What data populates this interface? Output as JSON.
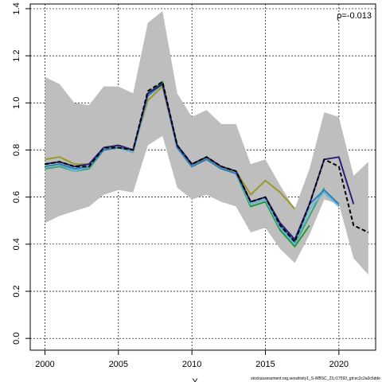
{
  "chart_data": {
    "type": "line",
    "xlim": [
      1999,
      2022.5
    ],
    "ylim": [
      -0.05,
      1.42
    ],
    "x_ticks": [
      2000,
      2005,
      2010,
      2015,
      2020
    ],
    "y_ticks": [
      0.0,
      0.2,
      0.4,
      0.6,
      0.8,
      1.0,
      1.2,
      1.4
    ],
    "x_tick_labels": [
      "2000",
      "2005",
      "2010",
      "2015",
      "2020"
    ],
    "y_tick_labels": [
      "0.0",
      "0.2",
      "0.4",
      "0.6",
      "0.8",
      "1.0",
      "1.2",
      "1.4"
    ],
    "grid": true,
    "annotation": "ρ=-0.013",
    "footer": "stockassessment.org,sensitivity1_S-WBSC_23,r17593_git:ec2c2a0c6dde",
    "xlabel_visible_fragment": "Y",
    "ylabel_visible_fragment": "",
    "band": {
      "x": [
        2000,
        2001,
        2002,
        2003,
        2004,
        2005,
        2006,
        2007,
        2008,
        2009,
        2010,
        2011,
        2012,
        2013,
        2014,
        2015,
        2016,
        2017,
        2018,
        2019,
        2020,
        2021,
        2022
      ],
      "upper": [
        1.11,
        1.08,
        1.0,
        0.99,
        1.07,
        1.07,
        1.04,
        1.34,
        1.39,
        1.04,
        0.94,
        0.97,
        0.91,
        0.91,
        0.74,
        0.76,
        0.65,
        0.55,
        0.72,
        0.96,
        0.94,
        0.69,
        0.75
      ],
      "lower": [
        0.49,
        0.52,
        0.54,
        0.56,
        0.61,
        0.63,
        0.62,
        0.82,
        0.86,
        0.64,
        0.59,
        0.61,
        0.58,
        0.56,
        0.45,
        0.47,
        0.38,
        0.32,
        0.44,
        0.59,
        0.57,
        0.34,
        0.27
      ]
    },
    "series": [
      {
        "style": "dashed",
        "color": "#000000",
        "x": [
          2000,
          2001,
          2002,
          2003,
          2004,
          2005,
          2006,
          2007,
          2008,
          2009,
          2010,
          2011,
          2012,
          2013,
          2014,
          2015,
          2016,
          2017,
          2018,
          2019,
          2020,
          2021,
          2022
        ],
        "y": [
          0.74,
          0.75,
          0.73,
          0.73,
          0.81,
          0.81,
          0.8,
          1.05,
          1.09,
          0.82,
          0.74,
          0.77,
          0.73,
          0.71,
          0.58,
          0.6,
          0.48,
          0.41,
          0.57,
          0.76,
          0.73,
          0.48,
          0.45
        ]
      },
      {
        "style": "solid",
        "color": "#2e1f7a",
        "x": [
          2000,
          2001,
          2002,
          2003,
          2004,
          2005,
          2006,
          2007,
          2008,
          2009,
          2010,
          2011,
          2012,
          2013,
          2014,
          2015,
          2016,
          2017,
          2018,
          2019,
          2020,
          2021
        ],
        "y": [
          0.74,
          0.75,
          0.73,
          0.74,
          0.81,
          0.82,
          0.8,
          1.04,
          1.08,
          0.82,
          0.74,
          0.77,
          0.73,
          0.71,
          0.58,
          0.6,
          0.49,
          0.42,
          0.57,
          0.76,
          0.77,
          0.57
        ]
      },
      {
        "style": "solid",
        "color": "#2f7fbf",
        "x": [
          2000,
          2001,
          2002,
          2003,
          2004,
          2005,
          2006,
          2007,
          2008,
          2009,
          2010,
          2011,
          2012,
          2013,
          2014,
          2015,
          2016,
          2017,
          2018,
          2019,
          2020
        ],
        "y": [
          0.73,
          0.74,
          0.72,
          0.73,
          0.8,
          0.81,
          0.8,
          1.03,
          1.08,
          0.81,
          0.73,
          0.76,
          0.72,
          0.7,
          0.58,
          0.6,
          0.48,
          0.41,
          0.57,
          0.63,
          0.57
        ]
      },
      {
        "style": "solid",
        "color": "#6bb8d8",
        "x": [
          2000,
          2001,
          2002,
          2003,
          2004,
          2005,
          2006,
          2007,
          2008,
          2009,
          2010,
          2011,
          2012,
          2013,
          2014,
          2015,
          2016,
          2017,
          2018,
          2019,
          2020
        ],
        "y": [
          0.73,
          0.74,
          0.71,
          0.73,
          0.8,
          0.81,
          0.79,
          1.03,
          1.08,
          0.81,
          0.73,
          0.76,
          0.72,
          0.7,
          0.57,
          0.59,
          0.47,
          0.4,
          0.55,
          0.62,
          0.56
        ]
      },
      {
        "style": "solid",
        "color": "#35a778",
        "x": [
          2000,
          2001,
          2002,
          2003,
          2004,
          2005,
          2006,
          2007,
          2008,
          2009,
          2010,
          2011,
          2012,
          2013,
          2014,
          2015,
          2016,
          2017,
          2018,
          2019
        ],
        "y": [
          0.72,
          0.73,
          0.71,
          0.72,
          0.8,
          0.81,
          0.79,
          1.03,
          1.08,
          0.81,
          0.73,
          0.76,
          0.72,
          0.7,
          0.57,
          0.59,
          0.47,
          0.4,
          0.52,
          0.64
        ]
      },
      {
        "style": "solid",
        "color": "#1f9a3a",
        "x": [
          2000,
          2001,
          2002,
          2003,
          2004,
          2005,
          2006,
          2007,
          2008,
          2009,
          2010,
          2011,
          2012,
          2013,
          2014,
          2015,
          2016,
          2017,
          2018
        ],
        "y": [
          0.73,
          0.74,
          0.72,
          0.73,
          0.8,
          0.81,
          0.79,
          1.04,
          1.09,
          0.81,
          0.73,
          0.76,
          0.72,
          0.7,
          0.56,
          0.58,
          0.46,
          0.39,
          0.48
        ]
      },
      {
        "style": "solid",
        "color": "#9a9a2a",
        "x": [
          2000,
          2001,
          2002,
          2003,
          2004,
          2005,
          2006,
          2007,
          2008,
          2009,
          2010,
          2011,
          2012,
          2013,
          2014,
          2015,
          2016,
          2017
        ],
        "y": [
          0.76,
          0.77,
          0.74,
          0.74,
          0.8,
          0.82,
          0.8,
          1.01,
          1.07,
          0.81,
          0.73,
          0.77,
          0.72,
          0.71,
          0.61,
          0.67,
          0.62,
          0.55
        ]
      }
    ]
  }
}
